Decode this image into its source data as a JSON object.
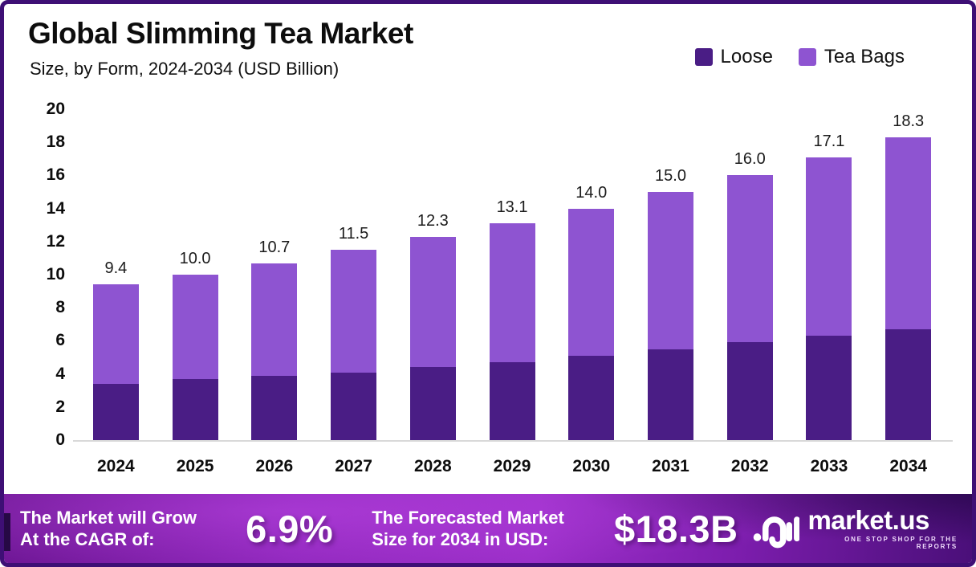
{
  "title": "Global Slimming Tea Market",
  "subtitle": "Size, by Form, 2024-2034 (USD Billion)",
  "legend": [
    {
      "label": "Loose",
      "color": "#4A1D85"
    },
    {
      "label": "Tea Bags",
      "color": "#8E54D1"
    }
  ],
  "chart_data": {
    "type": "bar",
    "stacked": true,
    "title": "Global Slimming Tea Market",
    "subtitle": "Size, by Form, 2024-2034 (USD Billion)",
    "xlabel": "",
    "ylabel": "USD Billion",
    "ylim": [
      0,
      20
    ],
    "y_ticks": [
      0,
      2,
      4,
      6,
      8,
      10,
      12,
      14,
      16,
      18,
      20
    ],
    "grid": false,
    "legend_position": "top-right",
    "categories": [
      "2024",
      "2025",
      "2026",
      "2027",
      "2028",
      "2029",
      "2030",
      "2031",
      "2032",
      "2033",
      "2034"
    ],
    "series": [
      {
        "name": "Loose",
        "color": "#4A1D85",
        "values": [
          3.4,
          3.7,
          3.9,
          4.1,
          4.4,
          4.7,
          5.1,
          5.5,
          5.9,
          6.3,
          6.7
        ]
      },
      {
        "name": "Tea Bags",
        "color": "#8E54D1",
        "values": [
          6.0,
          6.3,
          6.8,
          7.4,
          7.9,
          8.4,
          8.9,
          9.5,
          10.1,
          10.8,
          11.6
        ]
      }
    ],
    "totals": [
      9.4,
      10.0,
      10.7,
      11.5,
      12.3,
      13.1,
      14.0,
      15.0,
      16.0,
      17.1,
      18.3
    ],
    "total_labels": [
      "9.4",
      "10.0",
      "10.7",
      "11.5",
      "12.3",
      "13.1",
      "14.0",
      "15.0",
      "16.0",
      "17.1",
      "18.3"
    ]
  },
  "footer": {
    "cagr_label_line1": "The Market will Grow",
    "cagr_label_line2": "At the CAGR of:",
    "cagr_value": "6.9%",
    "forecast_label_line1": "The Forecasted Market",
    "forecast_label_line2": "Size for 2034 in USD:",
    "forecast_value": "$18.3B",
    "logo_text": "market.us",
    "logo_tagline": "ONE STOP SHOP FOR THE REPORTS"
  },
  "colors": {
    "border": "#3E0F75",
    "loose": "#4A1D85",
    "tea_bags": "#8E54D1",
    "banner_bright": "#9C2FC9",
    "banner_dark": "#4A0F79",
    "text": "#0d0d0d"
  }
}
